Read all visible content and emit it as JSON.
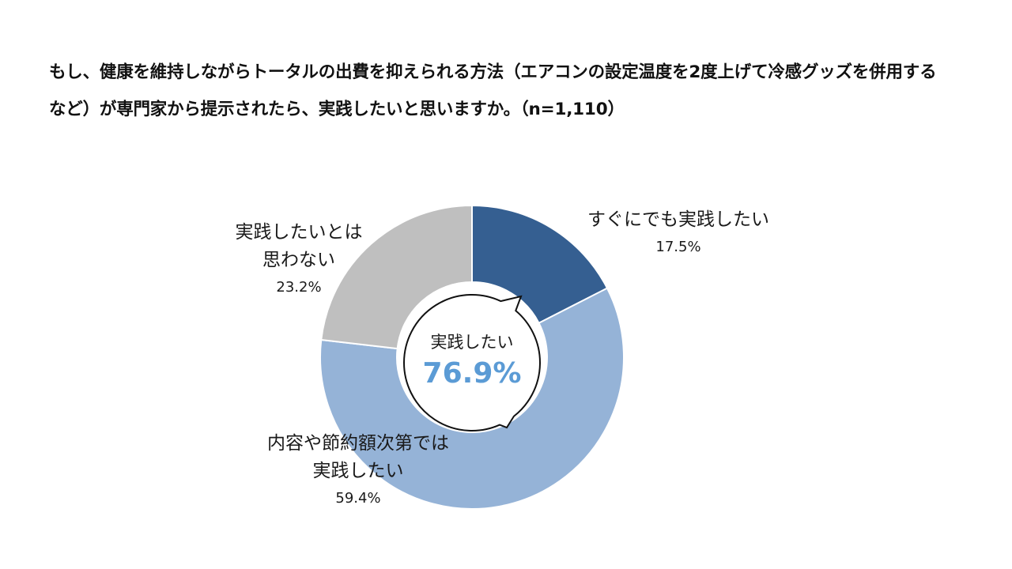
{
  "title_lines": [
    "もし、健康を維持しながらトータルの出費を抑えられる方法（エアコンの設定温度を2度上げて冷感グッズを併用する",
    "など）が専門家から提示されたら、実践したいと思いますか。（n=1,110）"
  ],
  "chart_data": {
    "type": "pie",
    "variant": "donut",
    "title": "もし、健康を維持しながらトータルの出費を抑えられる方法（エアコンの設定温度を2度上げて冷感グッズを併用するなど）が専門家から提示されたら、実践したいと思いますか。（n=1,110）",
    "start": "top",
    "direction": "clockwise",
    "slices": [
      {
        "label_lines": [
          "すぐにでも実践したい"
        ],
        "value": 17.5,
        "value_label": "17.5%",
        "color": "#355f91"
      },
      {
        "label_lines": [
          "内容や節約額次第では",
          "実践したい"
        ],
        "value": 59.4,
        "value_label": "59.4%",
        "color": "#95b3d7"
      },
      {
        "label_lines": [
          "実践したいとは",
          "思わない"
        ],
        "value": 23.2,
        "value_label": "23.2%",
        "color": "#bfbfbf"
      }
    ],
    "center": {
      "caption": "実践したい",
      "value_label": "76.9%",
      "value_color": "#5b9bd5"
    }
  }
}
